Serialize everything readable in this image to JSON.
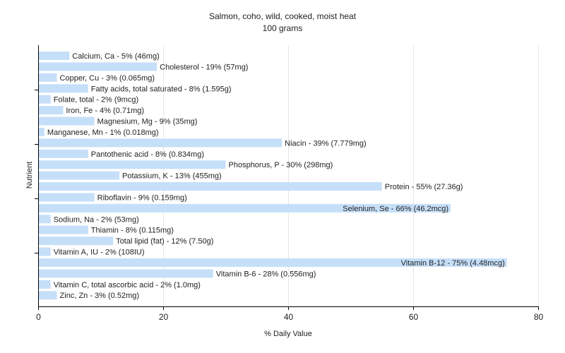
{
  "chart_data": {
    "type": "bar",
    "orientation": "horizontal",
    "title": "Salmon, coho, wild, cooked, moist heat",
    "subtitle": "100 grams",
    "xlabel": "% Daily Value",
    "ylabel": "Nutrient",
    "xlim": [
      0,
      80
    ],
    "xticks": [
      0,
      20,
      40,
      60,
      80
    ],
    "grid": true,
    "bar_color": "#c6dff9",
    "categories": [
      "Calcium, Ca",
      "Cholesterol",
      "Copper, Cu",
      "Fatty acids, total saturated",
      "Folate, total",
      "Iron, Fe",
      "Magnesium, Mg",
      "Manganese, Mn",
      "Niacin",
      "Pantothenic acid",
      "Phosphorus, P",
      "Potassium, K",
      "Protein",
      "Riboflavin",
      "Selenium, Se",
      "Sodium, Na",
      "Thiamin",
      "Total lipid (fat)",
      "Vitamin A, IU",
      "Vitamin B-12",
      "Vitamin B-6",
      "Vitamin C, total ascorbic acid",
      "Zinc, Zn"
    ],
    "values": [
      5,
      19,
      3,
      8,
      2,
      4,
      9,
      1,
      39,
      8,
      30,
      13,
      55,
      9,
      66,
      2,
      8,
      12,
      2,
      75,
      28,
      2,
      3
    ],
    "labels": [
      "Calcium, Ca - 5% (46mg)",
      "Cholesterol - 19% (57mg)",
      "Copper, Cu - 3% (0.065mg)",
      "Fatty acids, total saturated - 8% (1.595g)",
      "Folate, total - 2% (9mcg)",
      "Iron, Fe - 4% (0.71mg)",
      "Magnesium, Mg - 9% (35mg)",
      "Manganese, Mn - 1% (0.018mg)",
      "Niacin - 39% (7.779mg)",
      "Pantothenic acid - 8% (0.834mg)",
      "Phosphorus, P - 30% (298mg)",
      "Potassium, K - 13% (455mg)",
      "Protein - 55% (27.36g)",
      "Riboflavin - 9% (0.159mg)",
      "Selenium, Se - 66% (46.2mcg)",
      "Sodium, Na - 2% (53mg)",
      "Thiamin - 8% (0.115mg)",
      "Total lipid (fat) - 12% (7.50g)",
      "Vitamin A, IU - 2% (108IU)",
      "Vitamin B-12 - 75% (4.48mcg)",
      "Vitamin B-6 - 28% (0.556mg)",
      "Vitamin C, total ascorbic acid - 2% (1.0mg)",
      "Zinc, Zn - 3% (0.52mg)"
    ]
  }
}
